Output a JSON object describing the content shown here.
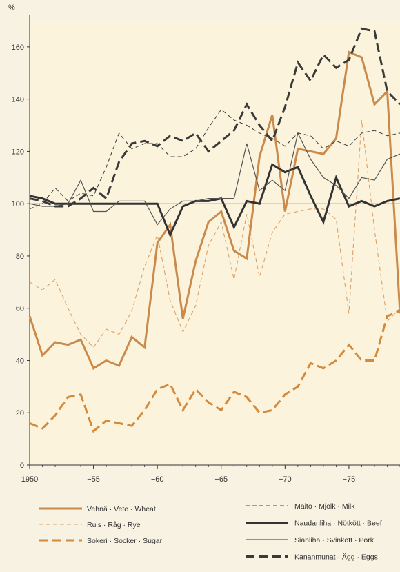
{
  "chart_data": {
    "type": "line",
    "ylabel": "%",
    "ylim": [
      0,
      170
    ],
    "xlim": [
      1950,
      1979
    ],
    "grid": false,
    "x_ticks": [
      {
        "value": 1950,
        "label": "1950"
      },
      {
        "value": 1955,
        "label": "−55"
      },
      {
        "value": 1960,
        "label": "−60"
      },
      {
        "value": 1965,
        "label": "−65"
      },
      {
        "value": 1970,
        "label": "−70"
      },
      {
        "value": 1975,
        "label": "−75"
      }
    ],
    "y_ticks": [
      0,
      20,
      40,
      60,
      80,
      100,
      120,
      140,
      160
    ],
    "reference_line": 100,
    "legend_position": "bottom",
    "series": [
      {
        "name": "Vehnä · Vete · Wheat",
        "color": "#c98a4b",
        "style": "thick-solid",
        "x": [
          1950,
          1951,
          1952,
          1953,
          1954,
          1955,
          1956,
          1957,
          1958,
          1959,
          1960,
          1961,
          1962,
          1963,
          1964,
          1965,
          1966,
          1967,
          1968,
          1969,
          1970,
          1971,
          1972,
          1973,
          1974,
          1975,
          1976,
          1977,
          1978,
          1979
        ],
        "values": [
          57,
          42,
          47,
          46,
          48,
          37,
          40,
          38,
          49,
          45,
          85,
          92,
          56,
          78,
          93,
          97,
          82,
          79,
          118,
          134,
          97,
          121,
          120,
          119,
          125,
          158,
          156,
          138,
          143,
          58
        ]
      },
      {
        "name": "Ruis · Råg · Rye",
        "color": "#d9a06a",
        "style": "thin-dash",
        "x": [
          1950,
          1951,
          1952,
          1953,
          1954,
          1955,
          1956,
          1957,
          1958,
          1959,
          1960,
          1961,
          1962,
          1963,
          1964,
          1965,
          1966,
          1967,
          1968,
          1969,
          1970,
          1971,
          1972,
          1973,
          1974,
          1975,
          1976,
          1977,
          1978,
          1979
        ],
        "values": [
          70,
          67,
          71,
          60,
          50,
          45,
          52,
          50,
          59,
          76,
          88,
          63,
          51,
          61,
          84,
          93,
          71,
          96,
          72,
          89,
          96,
          97,
          98,
          98,
          94,
          58,
          132,
          90,
          55,
          60
        ]
      },
      {
        "name": "Sokeri · Socker · Sugar",
        "color": "#d48a3a",
        "style": "thick-dash",
        "x": [
          1950,
          1951,
          1952,
          1953,
          1954,
          1955,
          1956,
          1957,
          1958,
          1959,
          1960,
          1961,
          1962,
          1963,
          1964,
          1965,
          1966,
          1967,
          1968,
          1969,
          1970,
          1971,
          1972,
          1973,
          1974,
          1975,
          1976,
          1977,
          1978,
          1979
        ],
        "values": [
          16,
          14,
          19,
          26,
          27,
          13,
          17,
          16,
          15,
          21,
          29,
          31,
          21,
          29,
          24,
          21,
          28,
          26,
          20,
          21,
          27,
          30,
          39,
          37,
          40,
          46,
          40,
          40,
          57,
          59
        ]
      },
      {
        "name": "Maito · Mjölk · Milk",
        "color": "#444444",
        "style": "thin-dash",
        "x": [
          1950,
          1951,
          1952,
          1953,
          1954,
          1955,
          1956,
          1957,
          1958,
          1959,
          1960,
          1961,
          1962,
          1963,
          1964,
          1965,
          1966,
          1967,
          1968,
          1969,
          1970,
          1971,
          1972,
          1973,
          1974,
          1975,
          1976,
          1977,
          1978,
          1979
        ],
        "values": [
          98,
          100,
          106,
          101,
          104,
          103,
          114,
          127,
          121,
          123,
          123,
          118,
          118,
          121,
          129,
          136,
          132,
          130,
          127,
          125,
          122,
          127,
          126,
          121,
          124,
          122,
          127,
          128,
          126,
          127
        ]
      },
      {
        "name": "Naudanliha · Nötkött · Beef",
        "color": "#333333",
        "style": "thick-solid",
        "x": [
          1950,
          1951,
          1952,
          1953,
          1954,
          1955,
          1956,
          1957,
          1958,
          1959,
          1960,
          1961,
          1962,
          1963,
          1964,
          1965,
          1966,
          1967,
          1968,
          1969,
          1970,
          1971,
          1972,
          1973,
          1974,
          1975,
          1976,
          1977,
          1978,
          1979
        ],
        "values": [
          103,
          102,
          100,
          100,
          100,
          100,
          100,
          100,
          100,
          100,
          100,
          88,
          99,
          101,
          101,
          102,
          91,
          101,
          100,
          115,
          112,
          114,
          103,
          93,
          110,
          99,
          101,
          99,
          101,
          102
        ]
      },
      {
        "name": "Sianliha · Svinkött · Pork",
        "color": "#555555",
        "style": "thin-solid",
        "x": [
          1950,
          1951,
          1952,
          1953,
          1954,
          1955,
          1956,
          1957,
          1958,
          1959,
          1960,
          1961,
          1962,
          1963,
          1964,
          1965,
          1966,
          1967,
          1968,
          1969,
          1970,
          1971,
          1972,
          1973,
          1974,
          1975,
          1976,
          1977,
          1978,
          1979
        ],
        "values": [
          100,
          99,
          99,
          100,
          109,
          97,
          97,
          101,
          101,
          101,
          92,
          98,
          101,
          101,
          102,
          102,
          102,
          123,
          105,
          109,
          105,
          127,
          117,
          110,
          107,
          102,
          110,
          109,
          117,
          119
        ]
      },
      {
        "name": "Kananmunat · Ägg · Eggs",
        "color": "#3a3a3a",
        "style": "thick-dash",
        "x": [
          1950,
          1951,
          1952,
          1953,
          1954,
          1955,
          1956,
          1957,
          1958,
          1959,
          1960,
          1961,
          1962,
          1963,
          1964,
          1965,
          1966,
          1967,
          1968,
          1969,
          1970,
          1971,
          1972,
          1973,
          1974,
          1975,
          1976,
          1977,
          1978,
          1979
        ],
        "values": [
          102,
          101,
          99,
          99,
          102,
          106,
          102,
          116,
          123,
          124,
          122,
          126,
          124,
          127,
          120,
          124,
          128,
          138,
          130,
          124,
          137,
          154,
          147,
          157,
          152,
          155,
          167,
          166,
          143,
          138
        ]
      }
    ]
  }
}
